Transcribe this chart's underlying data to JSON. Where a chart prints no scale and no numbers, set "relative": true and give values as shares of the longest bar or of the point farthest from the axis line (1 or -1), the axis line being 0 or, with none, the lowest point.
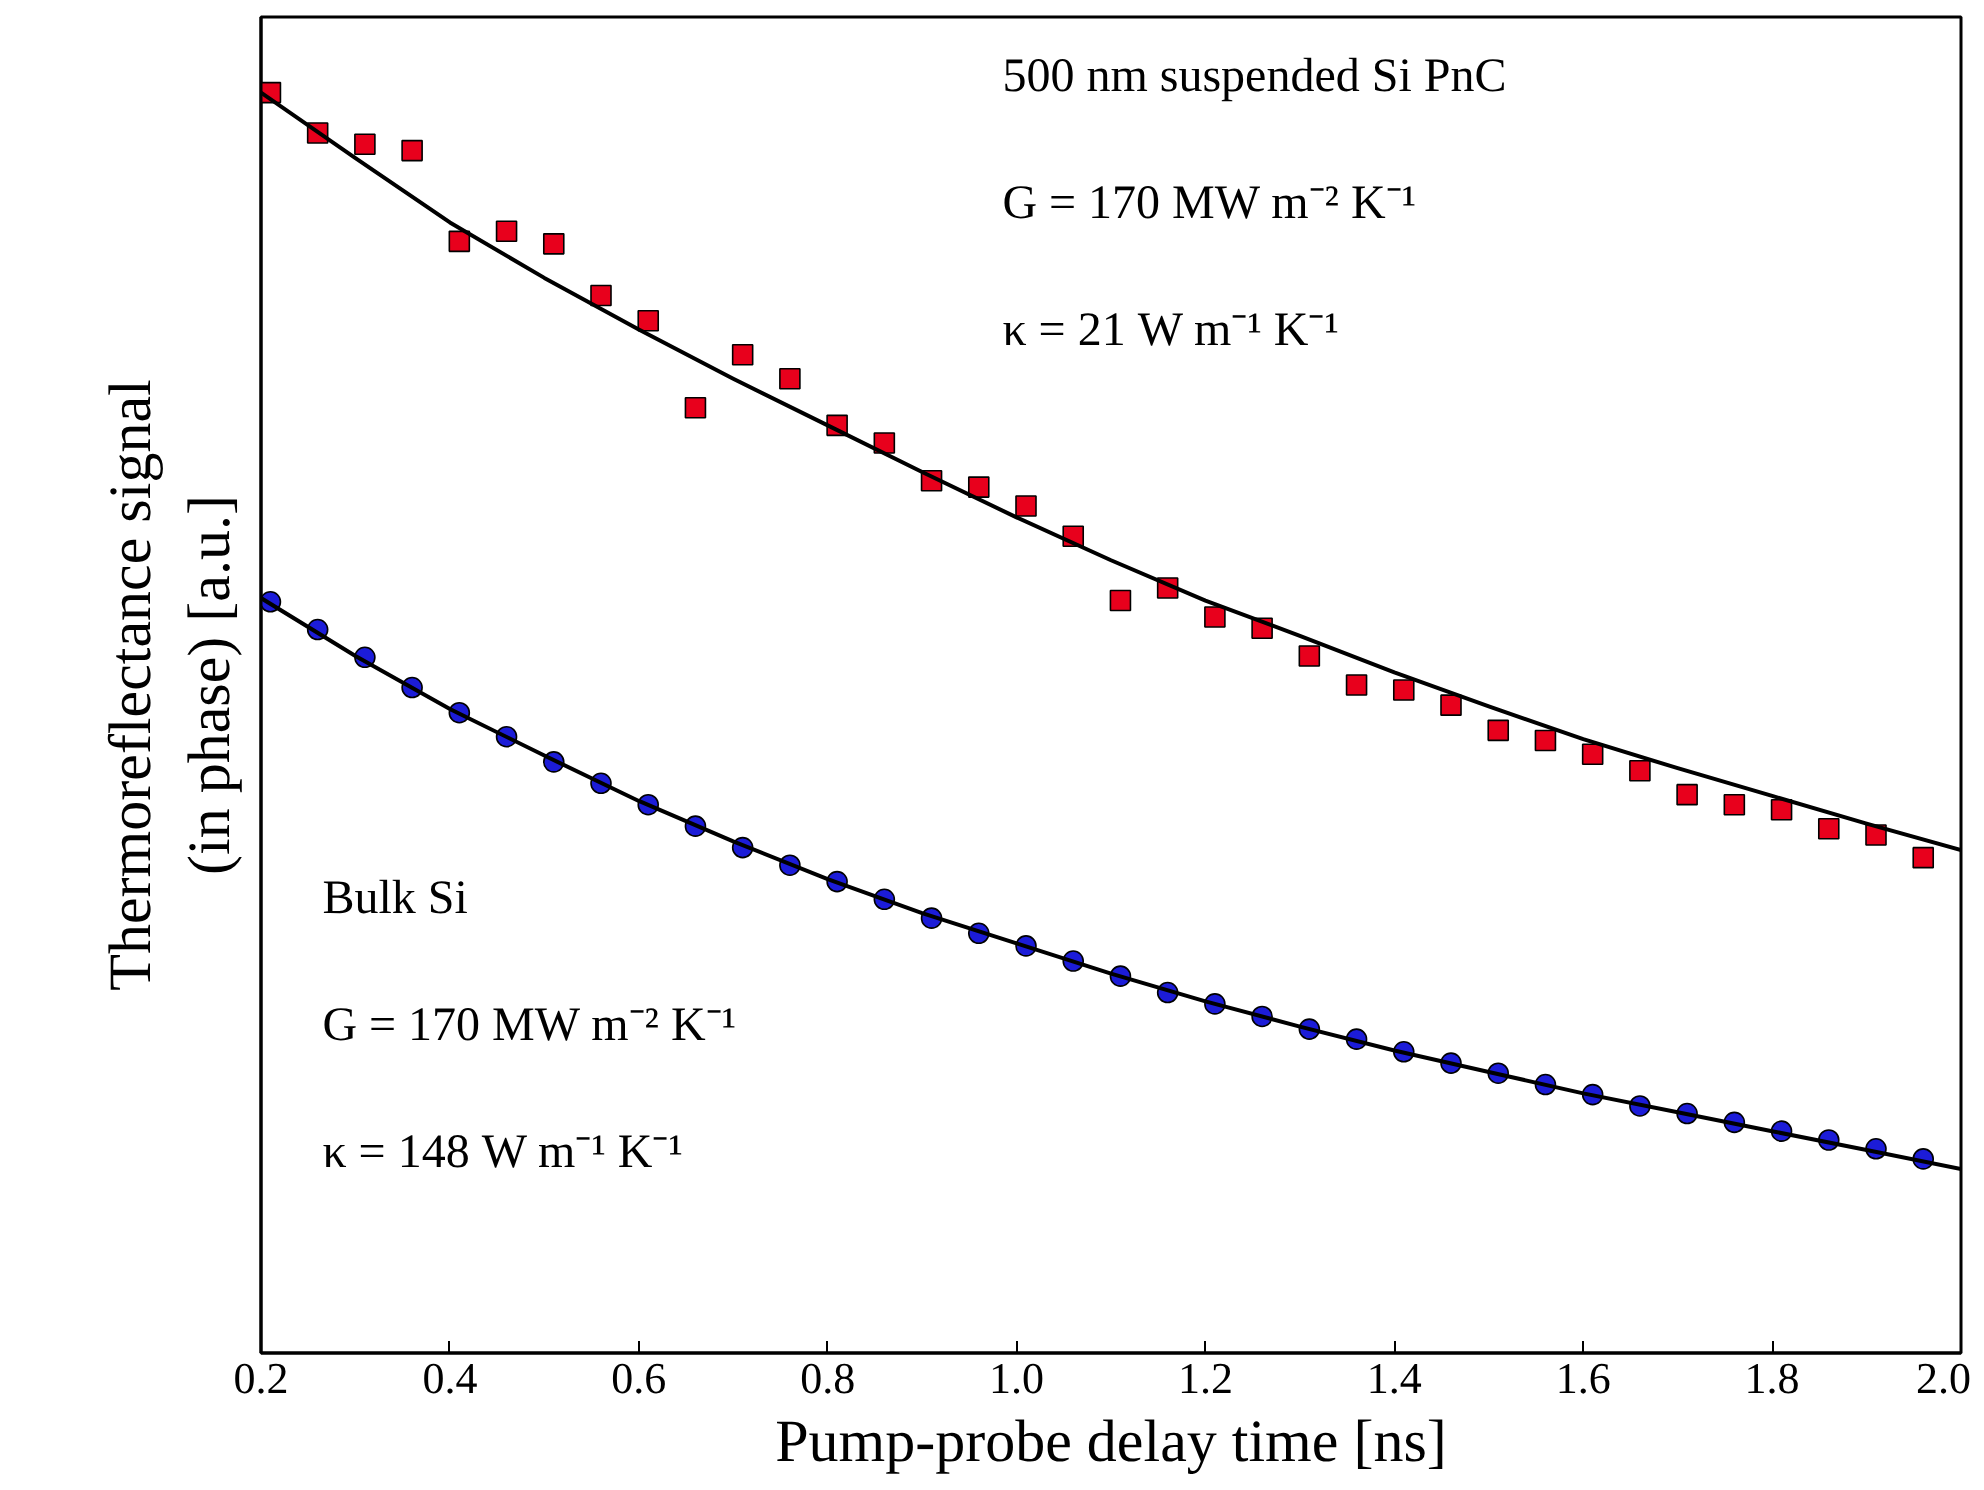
{
  "chart_data": {
    "type": "scatter",
    "relative": true,
    "xlabel": "Pump-probe delay time [ns]",
    "ylabel": "Thermoreflectance signal\n(in phase) [a.u.]",
    "xlim": [
      0.2,
      2.0
    ],
    "xticks": [
      0.2,
      0.4,
      0.6,
      0.8,
      {
        "value": 1.0,
        "label": "1.0"
      },
      1.2,
      1.4,
      1.6,
      1.8,
      {
        "value": 2.0,
        "label": "2.0"
      }
    ],
    "grid": false,
    "annotations": [
      "500 nm suspended Si PnC",
      "G = 170 MW m⁻² K⁻¹",
      "κ = 21 W m⁻¹ K⁻¹",
      "Bulk Si",
      "G = 170 MW m⁻² K⁻¹",
      "κ = 148 W m⁻¹ K⁻¹"
    ],
    "series": [
      {
        "marker": "square",
        "color": "#e8001c",
        "x": [
          0.21,
          0.26,
          0.31,
          0.36,
          0.41,
          0.46,
          0.51,
          0.56,
          0.61,
          0.66,
          0.71,
          0.76,
          0.81,
          0.86,
          0.91,
          0.96,
          1.01,
          1.06,
          1.11,
          1.16,
          1.21,
          1.26,
          1.31,
          1.36,
          1.41,
          1.46,
          1.51,
          1.56,
          1.61,
          1.66,
          1.71,
          1.76,
          1.81,
          1.86,
          1.91,
          1.96
        ],
        "values": [
          1.0,
          0.968,
          0.959,
          0.954,
          0.882,
          0.89,
          0.88,
          0.839,
          0.819,
          0.75,
          0.792,
          0.773,
          0.736,
          0.722,
          0.692,
          0.687,
          0.672,
          0.648,
          0.597,
          0.607,
          0.584,
          0.575,
          0.553,
          0.53,
          0.526,
          0.514,
          0.494,
          0.486,
          0.475,
          0.462,
          0.443,
          0.435,
          0.431,
          0.416,
          0.411,
          0.393
        ]
      },
      {
        "type": "line",
        "color": "#000000",
        "x": [
          0.2,
          0.3,
          0.4,
          0.5,
          0.6,
          0.7,
          0.8,
          0.9,
          1.0,
          1.1,
          1.2,
          1.3,
          1.4,
          1.5,
          1.6,
          1.7,
          1.8,
          1.9,
          2.0
        ],
        "values": [
          1.0,
          0.948,
          0.897,
          0.853,
          0.812,
          0.773,
          0.736,
          0.699,
          0.663,
          0.629,
          0.597,
          0.569,
          0.54,
          0.513,
          0.487,
          0.464,
          0.442,
          0.42,
          0.399
        ]
      },
      {
        "marker": "circle",
        "color": "#1c1cd8",
        "x": [
          0.21,
          0.26,
          0.31,
          0.36,
          0.41,
          0.46,
          0.51,
          0.56,
          0.61,
          0.66,
          0.71,
          0.76,
          0.81,
          0.86,
          0.91,
          0.96,
          1.01,
          1.06,
          1.11,
          1.16,
          1.21,
          1.26,
          1.31,
          1.36,
          1.41,
          1.46,
          1.51,
          1.56,
          1.61,
          1.66,
          1.71,
          1.76,
          1.81,
          1.86,
          1.91,
          1.96
        ],
        "values": [
          0.596,
          0.574,
          0.552,
          0.528,
          0.508,
          0.489,
          0.469,
          0.452,
          0.435,
          0.418,
          0.401,
          0.387,
          0.374,
          0.36,
          0.345,
          0.333,
          0.323,
          0.311,
          0.299,
          0.286,
          0.277,
          0.267,
          0.257,
          0.249,
          0.239,
          0.23,
          0.222,
          0.213,
          0.205,
          0.196,
          0.19,
          0.183,
          0.176,
          0.169,
          0.162,
          0.154
        ]
      },
      {
        "type": "line",
        "color": "#000000",
        "x": [
          0.2,
          0.3,
          0.4,
          0.5,
          0.6,
          0.7,
          0.8,
          0.9,
          1.0,
          1.1,
          1.2,
          1.3,
          1.4,
          1.5,
          1.6,
          1.7,
          1.8,
          1.9,
          2.0
        ],
        "values": [
          0.599,
          0.553,
          0.511,
          0.474,
          0.438,
          0.406,
          0.376,
          0.349,
          0.325,
          0.301,
          0.279,
          0.259,
          0.24,
          0.223,
          0.206,
          0.191,
          0.176,
          0.161,
          0.146
        ]
      }
    ]
  }
}
